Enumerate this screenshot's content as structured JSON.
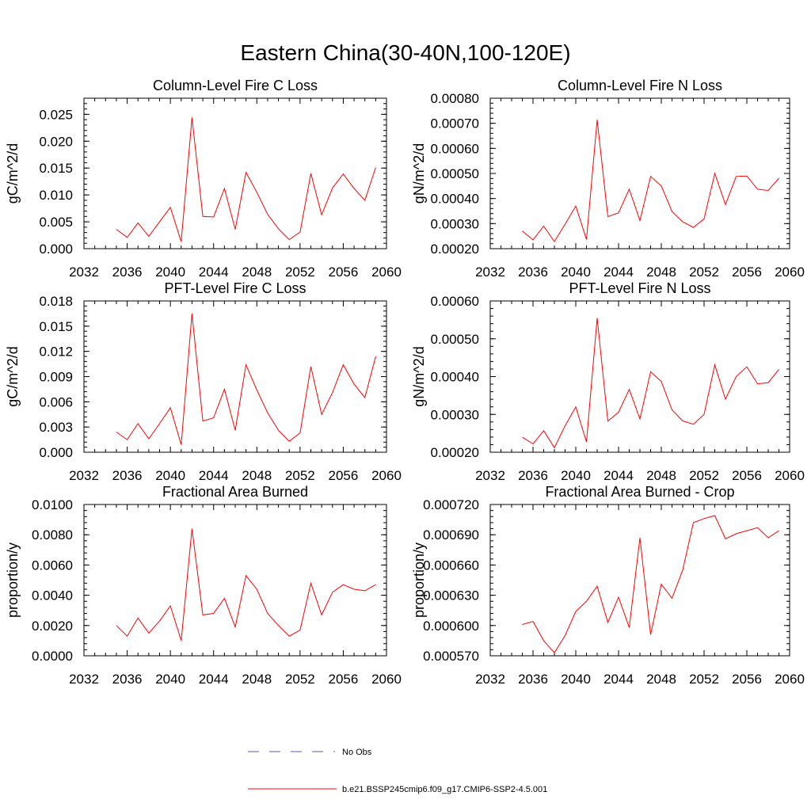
{
  "figure": {
    "title": "Eastern China(30-40N,100-120E)",
    "legend": [
      {
        "label": "No Obs",
        "color": "#5a5ab4",
        "dash": "dashed"
      },
      {
        "label": "b.e21.BSSP245cmip6.f09_g17.CMIP6-SSP2-4.5.001",
        "color": "#ff0000",
        "dash": "solid"
      }
    ]
  },
  "chart_data": [
    {
      "type": "line",
      "title": "Column-Level Fire C Loss",
      "ylabel": "gC/m^2/d",
      "xlim": [
        2032,
        2060
      ],
      "xticks": [
        "2032",
        "2036",
        "2040",
        "2044",
        "2048",
        "2052",
        "2056",
        "2060"
      ],
      "ylim": [
        0,
        0.028
      ],
      "yticks": [
        "0.000",
        "0.005",
        "0.010",
        "0.015",
        "0.020",
        "0.025"
      ],
      "series": [
        {
          "color": "#ff0000",
          "x": [
            2035,
            2036,
            2037,
            2038,
            2039,
            2040,
            2041,
            2042,
            2043,
            2044,
            2045,
            2046,
            2047,
            2048,
            2049,
            2050,
            2051,
            2052,
            2053,
            2054,
            2055,
            2056,
            2057,
            2058,
            2059
          ],
          "values": [
            0.0036,
            0.0021,
            0.0048,
            0.0023,
            0.005,
            0.0077,
            0.0013,
            0.0244,
            0.006,
            0.0059,
            0.0112,
            0.0036,
            0.0142,
            0.0105,
            0.0064,
            0.0037,
            0.0017,
            0.0031,
            0.014,
            0.0063,
            0.0113,
            0.0139,
            0.0112,
            0.009,
            0.0151
          ]
        }
      ]
    },
    {
      "type": "line",
      "title": "Column-Level Fire N Loss",
      "ylabel": "gN/m^2/d",
      "xlim": [
        2032,
        2060
      ],
      "xticks": [
        "2032",
        "2036",
        "2040",
        "2044",
        "2048",
        "2052",
        "2056",
        "2060"
      ],
      "ylim": [
        0.0002,
        0.0008
      ],
      "yticks": [
        "0.00020",
        "0.00030",
        "0.00040",
        "0.00050",
        "0.00060",
        "0.00070",
        "0.00080"
      ],
      "series": [
        {
          "color": "#ff0000",
          "x": [
            2035,
            2036,
            2037,
            2038,
            2039,
            2040,
            2041,
            2042,
            2043,
            2044,
            2045,
            2046,
            2047,
            2048,
            2049,
            2050,
            2051,
            2052,
            2053,
            2054,
            2055,
            2056,
            2057,
            2058,
            2059
          ],
          "values": [
            0.00027,
            0.000235,
            0.00029,
            0.000228,
            0.000298,
            0.00037,
            0.000237,
            0.000714,
            0.000328,
            0.000343,
            0.000437,
            0.000312,
            0.000488,
            0.00045,
            0.000348,
            0.000307,
            0.000285,
            0.000319,
            0.0005,
            0.000376,
            0.000488,
            0.00049,
            0.000437,
            0.000432,
            0.000481
          ]
        }
      ]
    },
    {
      "type": "line",
      "title": "PFT-Level Fire C Loss",
      "ylabel": "gC/m^2/d",
      "xlim": [
        2032,
        2060
      ],
      "xticks": [
        "2032",
        "2036",
        "2040",
        "2044",
        "2048",
        "2052",
        "2056",
        "2060"
      ],
      "ylim": [
        0,
        0.018
      ],
      "yticks": [
        "0.000",
        "0.003",
        "0.006",
        "0.009",
        "0.012",
        "0.015",
        "0.018"
      ],
      "series": [
        {
          "color": "#ff0000",
          "x": [
            2035,
            2036,
            2037,
            2038,
            2039,
            2040,
            2041,
            2042,
            2043,
            2044,
            2045,
            2046,
            2047,
            2048,
            2049,
            2050,
            2051,
            2052,
            2053,
            2054,
            2055,
            2056,
            2057,
            2058,
            2059
          ],
          "values": [
            0.0024,
            0.0015,
            0.0034,
            0.0016,
            0.0034,
            0.0053,
            0.0009,
            0.0165,
            0.0037,
            0.0041,
            0.0075,
            0.0026,
            0.0104,
            0.0074,
            0.0047,
            0.0026,
            0.0013,
            0.0023,
            0.0102,
            0.0045,
            0.0071,
            0.0104,
            0.0081,
            0.0065,
            0.0114
          ]
        }
      ]
    },
    {
      "type": "line",
      "title": "PFT-Level Fire N Loss",
      "ylabel": "gN/m^2/d",
      "xlim": [
        2032,
        2060
      ],
      "xticks": [
        "2032",
        "2036",
        "2040",
        "2044",
        "2048",
        "2052",
        "2056",
        "2060"
      ],
      "ylim": [
        0.0002,
        0.0006
      ],
      "yticks": [
        "0.00020",
        "0.00030",
        "0.00040",
        "0.00050",
        "0.00060"
      ],
      "series": [
        {
          "color": "#ff0000",
          "x": [
            2035,
            2036,
            2037,
            2038,
            2039,
            2040,
            2041,
            2042,
            2043,
            2044,
            2045,
            2046,
            2047,
            2048,
            2049,
            2050,
            2051,
            2052,
            2053,
            2054,
            2055,
            2056,
            2057,
            2058,
            2059
          ],
          "values": [
            0.00024,
            0.000222,
            0.000257,
            0.000212,
            0.00027,
            0.00032,
            0.000227,
            0.000555,
            0.000282,
            0.000306,
            0.000366,
            0.000288,
            0.000413,
            0.000387,
            0.000312,
            0.000283,
            0.000274,
            0.0003,
            0.000431,
            0.00034,
            0.0004,
            0.000426,
            0.000381,
            0.000384,
            0.000419
          ]
        }
      ]
    },
    {
      "type": "line",
      "title": "Fractional Area Burned",
      "ylabel": "proportion/y",
      "xlim": [
        2032,
        2060
      ],
      "xticks": [
        "2032",
        "2036",
        "2040",
        "2044",
        "2048",
        "2052",
        "2056",
        "2060"
      ],
      "ylim": [
        0,
        0.01
      ],
      "yticks": [
        "0.0000",
        "0.0020",
        "0.0040",
        "0.0060",
        "0.0080",
        "0.0100"
      ],
      "series": [
        {
          "color": "#ff0000",
          "x": [
            2035,
            2036,
            2037,
            2038,
            2039,
            2040,
            2041,
            2042,
            2043,
            2044,
            2045,
            2046,
            2047,
            2048,
            2049,
            2050,
            2051,
            2052,
            2053,
            2054,
            2055,
            2056,
            2057,
            2058,
            2059
          ],
          "values": [
            0.002,
            0.0013,
            0.0025,
            0.0015,
            0.0023,
            0.0033,
            0.001,
            0.0084,
            0.0027,
            0.0028,
            0.0038,
            0.0019,
            0.0053,
            0.0044,
            0.0028,
            0.002,
            0.0013,
            0.0017,
            0.0048,
            0.0027,
            0.0042,
            0.0047,
            0.0044,
            0.0043,
            0.0047
          ]
        }
      ]
    },
    {
      "type": "line",
      "title": "Fractional Area Burned - Crop",
      "ylabel": "proportion/y",
      "xlim": [
        2032,
        2060
      ],
      "xticks": [
        "2032",
        "2036",
        "2040",
        "2044",
        "2048",
        "2052",
        "2056",
        "2060"
      ],
      "ylim": [
        0.00057,
        0.00072
      ],
      "yticks": [
        "0.000570",
        "0.000600",
        "0.000630",
        "0.000660",
        "0.000690",
        "0.000720"
      ],
      "series": [
        {
          "color": "#ff0000",
          "x": [
            2035,
            2036,
            2037,
            2038,
            2039,
            2040,
            2041,
            2042,
            2043,
            2044,
            2045,
            2046,
            2047,
            2048,
            2049,
            2050,
            2051,
            2052,
            2053,
            2054,
            2055,
            2056,
            2057,
            2058,
            2059
          ],
          "values": [
            0.000601,
            0.000604,
            0.000585,
            0.000573,
            0.00059,
            0.000614,
            0.000624,
            0.000639,
            0.000603,
            0.000628,
            0.000598,
            0.000687,
            0.000591,
            0.000641,
            0.000627,
            0.000655,
            0.000702,
            0.000706,
            0.000709,
            0.000686,
            0.000691,
            0.000694,
            0.000697,
            0.000687,
            0.000694
          ]
        }
      ]
    }
  ]
}
